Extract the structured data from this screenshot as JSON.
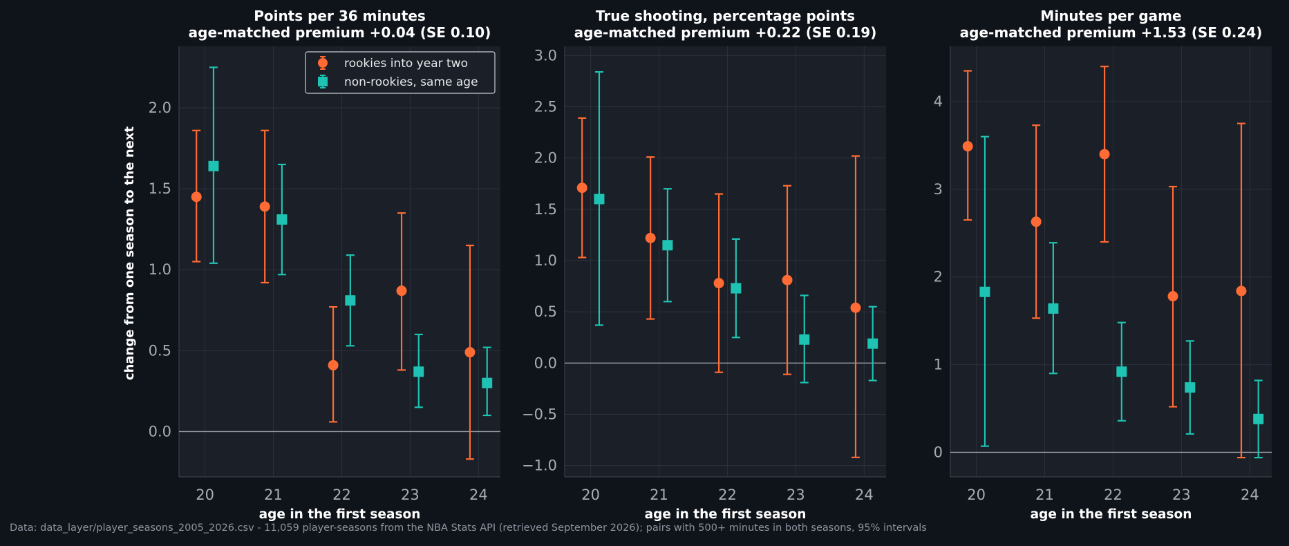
{
  "footnote": "Data: data_layer/player_seasons_2005_2026.csv - 11,059 player-seasons from the NBA Stats API (retrieved September 2026); pairs with 500+ minutes in both seasons, 95% intervals",
  "colors": {
    "background": "#0f131a",
    "axes_background": "#1b1f27",
    "grid": "#2c313b",
    "rookies": "#ff6b35",
    "non_rookies": "#1ec3b3",
    "title_text": "#ffffff",
    "tick_text": "#a7adb6",
    "zero_line": "#9aa0a8"
  },
  "chart_data": [
    {
      "type": "scatter",
      "title": "Points per 36 minutes",
      "subtitle": "age-matched premium +0.04 (SE 0.10)",
      "xlabel": "age in the first season",
      "ylabel": "change from one season to the next",
      "categories": [
        20,
        21,
        22,
        23,
        24
      ],
      "ylim": [
        -0.28,
        2.38
      ],
      "yticks": [
        0.0,
        0.5,
        1.0,
        1.5,
        2.0
      ],
      "ytick_labels": [
        "0.0",
        "0.5",
        "1.0",
        "1.5",
        "2.0"
      ],
      "grid": true,
      "legend": "top-right",
      "series": [
        {
          "name": "rookies into year two",
          "marker": "circle",
          "values": [
            1.45,
            1.39,
            0.41,
            0.87,
            0.49
          ],
          "lower": [
            1.05,
            0.92,
            0.06,
            0.38,
            -0.17
          ],
          "upper": [
            1.86,
            1.86,
            0.77,
            1.35,
            1.15
          ]
        },
        {
          "name": "non-rookies, same age",
          "marker": "square",
          "values": [
            1.64,
            1.31,
            0.81,
            0.37,
            0.3
          ],
          "lower": [
            1.04,
            0.97,
            0.53,
            0.15,
            0.1
          ],
          "upper": [
            2.25,
            1.65,
            1.09,
            0.6,
            0.52
          ]
        }
      ]
    },
    {
      "type": "scatter",
      "title": "True shooting, percentage points",
      "subtitle": "age-matched premium +0.22 (SE 0.19)",
      "xlabel": "age in the first season",
      "ylabel": "",
      "categories": [
        20,
        21,
        22,
        23,
        24
      ],
      "ylim": [
        -1.11,
        3.09
      ],
      "yticks": [
        -1.0,
        -0.5,
        0.0,
        0.5,
        1.0,
        1.5,
        2.0,
        2.5,
        3.0
      ],
      "ytick_labels": [
        "−1.0",
        "−0.5",
        "0.0",
        "0.5",
        "1.0",
        "1.5",
        "2.0",
        "2.5",
        "3.0"
      ],
      "grid": true,
      "series": [
        {
          "name": "rookies into year two",
          "marker": "circle",
          "values": [
            1.71,
            1.22,
            0.78,
            0.81,
            0.54
          ],
          "lower": [
            1.03,
            0.43,
            -0.09,
            -0.11,
            -0.92
          ],
          "upper": [
            2.39,
            2.01,
            1.65,
            1.73,
            2.02
          ]
        },
        {
          "name": "non-rookies, same age",
          "marker": "square",
          "values": [
            1.6,
            1.15,
            0.73,
            0.23,
            0.19
          ],
          "lower": [
            0.37,
            0.6,
            0.25,
            -0.19,
            -0.17
          ],
          "upper": [
            2.84,
            1.7,
            1.21,
            0.66,
            0.55
          ]
        }
      ]
    },
    {
      "type": "scatter",
      "title": "Minutes per game",
      "subtitle": "age-matched premium +1.53 (SE 0.24)",
      "xlabel": "age in the first season",
      "ylabel": "",
      "categories": [
        20,
        21,
        22,
        23,
        24
      ],
      "ylim": [
        -0.28,
        4.63
      ],
      "yticks": [
        0,
        1,
        2,
        3,
        4
      ],
      "ytick_labels": [
        "0",
        "1",
        "2",
        "3",
        "4"
      ],
      "grid": true,
      "series": [
        {
          "name": "rookies into year two",
          "marker": "circle",
          "values": [
            3.49,
            2.63,
            3.4,
            1.78,
            1.84
          ],
          "lower": [
            2.65,
            1.53,
            2.4,
            0.52,
            -0.06
          ],
          "upper": [
            4.35,
            3.73,
            4.4,
            3.03,
            3.75
          ]
        },
        {
          "name": "non-rookies, same age",
          "marker": "square",
          "values": [
            1.83,
            1.64,
            0.92,
            0.74,
            0.38
          ],
          "lower": [
            0.07,
            0.9,
            0.36,
            0.21,
            -0.06
          ],
          "upper": [
            3.6,
            2.39,
            1.48,
            1.27,
            0.82
          ]
        }
      ]
    }
  ]
}
